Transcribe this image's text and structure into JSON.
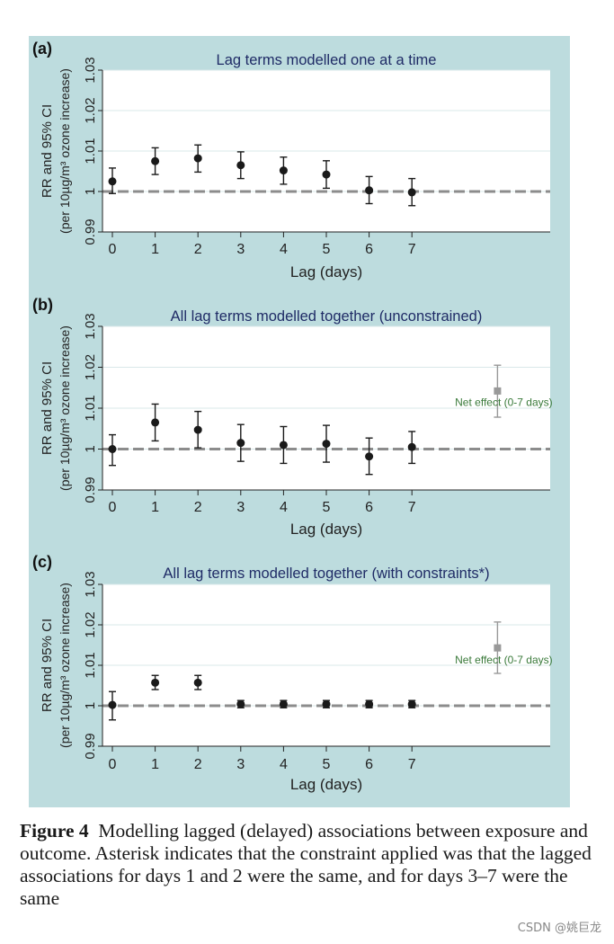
{
  "figure": {
    "caption_label": "Figure 4",
    "caption_text": "Modelling lagged (delayed) associations between exposure and outcome. Asterisk indicates that the constraint applied was that the lagged associations for days 1 and 2 were the same, and for days 3–7 were the same",
    "watermark": "CSDN @姚巨龙"
  },
  "colors": {
    "panel_bg": "#bddcde",
    "plot_bg": "#ffffff",
    "grid": "#d9e8e9",
    "points": "#1a1a1a",
    "net_effect": "#999999",
    "net_effect_label": "#3a7a3a",
    "reference_line": "#8c8c8c"
  },
  "chart_data": [
    {
      "type": "scatter",
      "panel_label": "(a)",
      "title": "Lag terms modelled one at a time",
      "xlabel": "Lag (days)",
      "ylabel_line1": "RR and 95% CI",
      "ylabel_line2": "(per 10µg/m³ ozone increase)",
      "ylim": [
        0.99,
        1.03
      ],
      "yticks": [
        "0.99",
        "1",
        "1.01",
        "1.02",
        "1.03"
      ],
      "xticks": [
        "0",
        "1",
        "2",
        "3",
        "4",
        "5",
        "6",
        "7"
      ],
      "reference_y": 1,
      "points": [
        {
          "x": 0,
          "est": 1.0025,
          "lo": 0.9995,
          "hi": 1.0058
        },
        {
          "x": 1,
          "est": 1.0075,
          "lo": 1.0042,
          "hi": 1.0108
        },
        {
          "x": 2,
          "est": 1.0082,
          "lo": 1.0048,
          "hi": 1.0115
        },
        {
          "x": 3,
          "est": 1.0065,
          "lo": 1.0032,
          "hi": 1.0098
        },
        {
          "x": 4,
          "est": 1.0052,
          "lo": 1.0018,
          "hi": 1.0085
        },
        {
          "x": 5,
          "est": 1.0042,
          "lo": 1.0008,
          "hi": 1.0076
        },
        {
          "x": 6,
          "est": 1.0003,
          "lo": 0.997,
          "hi": 1.0037
        },
        {
          "x": 7,
          "est": 0.9998,
          "lo": 0.9965,
          "hi": 1.0032
        }
      ]
    },
    {
      "type": "scatter",
      "panel_label": "(b)",
      "title": "All lag terms modelled together (unconstrained)",
      "xlabel": "Lag (days)",
      "ylabel_line1": "RR and 95% CI",
      "ylabel_line2": "(per 10µg/m³ ozone increase)",
      "ylim": [
        0.99,
        1.03
      ],
      "yticks": [
        "0.99",
        "1",
        "1.01",
        "1.02",
        "1.03"
      ],
      "xticks": [
        "0",
        "1",
        "2",
        "3",
        "4",
        "5",
        "6",
        "7"
      ],
      "reference_y": 1,
      "points": [
        {
          "x": 0,
          "est": 1.0,
          "lo": 0.996,
          "hi": 1.0035
        },
        {
          "x": 1,
          "est": 1.0065,
          "lo": 1.002,
          "hi": 1.011
        },
        {
          "x": 2,
          "est": 1.0047,
          "lo": 1.0003,
          "hi": 1.0092
        },
        {
          "x": 3,
          "est": 1.0015,
          "lo": 0.997,
          "hi": 1.006
        },
        {
          "x": 4,
          "est": 1.001,
          "lo": 0.9965,
          "hi": 1.0055
        },
        {
          "x": 5,
          "est": 1.0013,
          "lo": 0.9968,
          "hi": 1.0058
        },
        {
          "x": 6,
          "est": 0.9982,
          "lo": 0.9938,
          "hi": 1.0027
        },
        {
          "x": 7,
          "est": 1.0005,
          "lo": 0.9965,
          "hi": 1.0043
        }
      ],
      "net_effect": {
        "x": 9,
        "est": 1.0142,
        "lo": 1.0078,
        "hi": 1.0205,
        "label": "Net effect (0-7 days)"
      }
    },
    {
      "type": "scatter",
      "panel_label": "(c)",
      "title": "All lag terms modelled together (with constraints*)",
      "xlabel": "Lag (days)",
      "ylabel_line1": "RR and 95% CI",
      "ylabel_line2": "(per 10µg/m³ ozone increase)",
      "ylim": [
        0.99,
        1.03
      ],
      "yticks": [
        "0.99",
        "1",
        "1.01",
        "1.02",
        "1.03"
      ],
      "xticks": [
        "0",
        "1",
        "2",
        "3",
        "4",
        "5",
        "6",
        "7"
      ],
      "reference_y": 1,
      "points": [
        {
          "x": 0,
          "est": 1.0002,
          "lo": 0.9965,
          "hi": 1.0035
        },
        {
          "x": 1,
          "est": 1.0057,
          "lo": 1.004,
          "hi": 1.0075
        },
        {
          "x": 2,
          "est": 1.0057,
          "lo": 1.004,
          "hi": 1.0075
        },
        {
          "x": 3,
          "est": 1.0004,
          "lo": 0.9995,
          "hi": 1.0013
        },
        {
          "x": 4,
          "est": 1.0004,
          "lo": 0.9995,
          "hi": 1.0013
        },
        {
          "x": 5,
          "est": 1.0004,
          "lo": 0.9995,
          "hi": 1.0013
        },
        {
          "x": 6,
          "est": 1.0004,
          "lo": 0.9995,
          "hi": 1.0013
        },
        {
          "x": 7,
          "est": 1.0004,
          "lo": 0.9995,
          "hi": 1.0013
        }
      ],
      "net_effect": {
        "x": 9,
        "est": 1.0143,
        "lo": 1.008,
        "hi": 1.0207,
        "label": "Net effect (0-7 days)"
      }
    }
  ]
}
